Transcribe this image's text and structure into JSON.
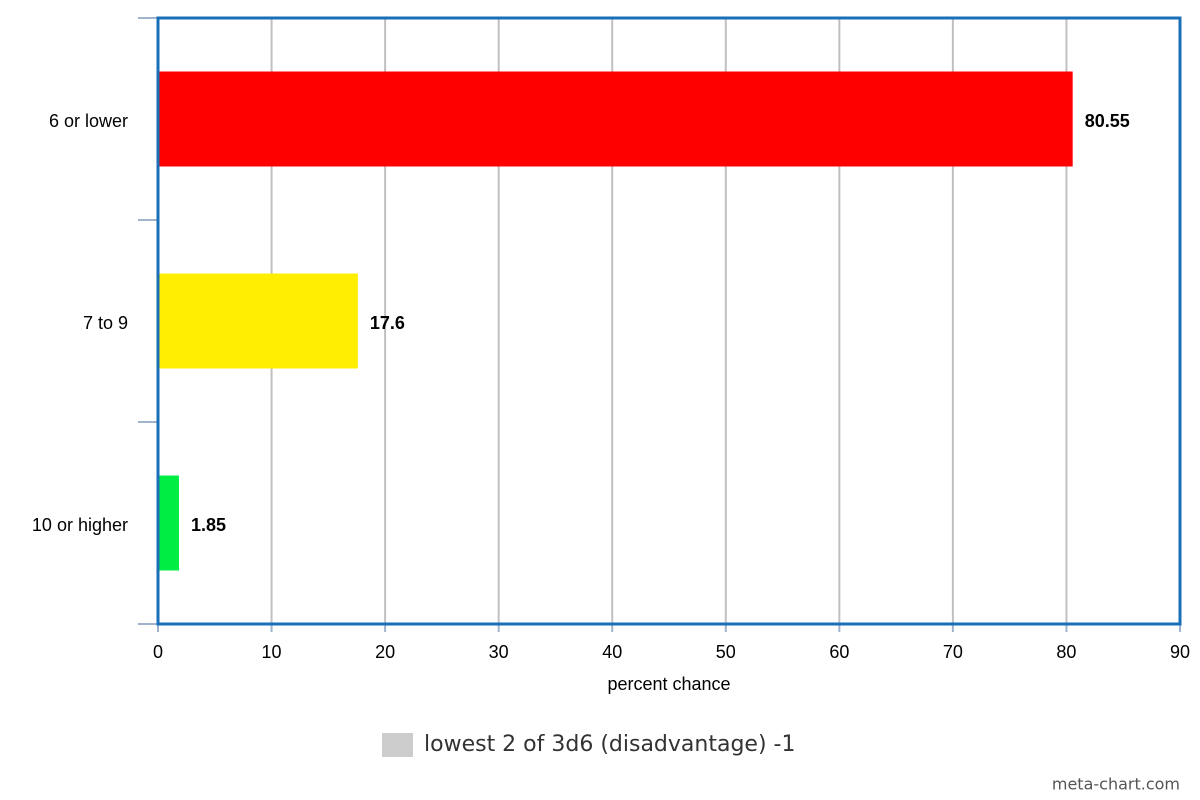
{
  "chart_data": {
    "type": "hbar",
    "categories": [
      "6 or lower",
      "7 to 9",
      "10 or higher"
    ],
    "series": [
      {
        "name": "lowest 2 of 3d6 (disadvantage) -1",
        "color": "#cccccc",
        "values": [
          80.55,
          17.6,
          1.85
        ],
        "colors": [
          "#ff0000",
          "#ffee00",
          "#00ee44"
        ]
      }
    ],
    "xlabel": "percent chance",
    "xlim": [
      0,
      90
    ],
    "xticks": [
      0,
      10,
      20,
      30,
      40,
      50,
      60,
      70,
      80,
      90
    ],
    "grid": true,
    "legend": "bottom",
    "credit": "meta-chart.com"
  }
}
